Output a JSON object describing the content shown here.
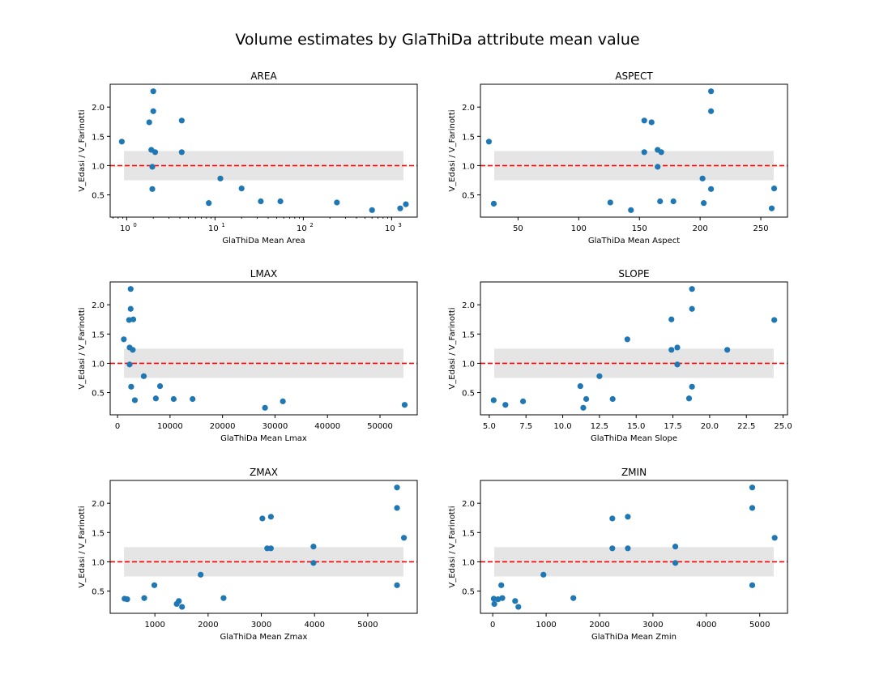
{
  "figure": {
    "title": "Volume estimates by GlaThiDa attribute mean value"
  },
  "chart_data": [
    {
      "type": "scatter",
      "title": "AREA",
      "xlabel": "GlaThiDa Mean Area",
      "ylabel": "V_Edasi / V_Farinotti",
      "xscale": "log",
      "xlim": [
        0.65,
        1950
      ],
      "ylim": [
        0.12,
        2.39
      ],
      "xticks": [
        1,
        10,
        100,
        1000
      ],
      "xtick_labels": [
        {
          "base": "10",
          "exp": "0"
        },
        {
          "base": "10",
          "exp": "1"
        },
        {
          "base": "10",
          "exp": "2"
        },
        {
          "base": "10",
          "exp": "3"
        }
      ],
      "yticks": [
        0.5,
        1.0,
        1.5,
        2.0
      ],
      "ytick_labels": [
        "0.5",
        "1.0",
        "1.5",
        "2.0"
      ],
      "band": [
        0.75,
        1.25
      ],
      "refline": 1.0,
      "points": [
        {
          "x": 0.88,
          "y": 1.41
        },
        {
          "x": 1.8,
          "y": 1.74
        },
        {
          "x": 1.9,
          "y": 1.27
        },
        {
          "x": 2.0,
          "y": 2.27
        },
        {
          "x": 2.0,
          "y": 1.93
        },
        {
          "x": 2.1,
          "y": 1.23
        },
        {
          "x": 1.95,
          "y": 0.98
        },
        {
          "x": 1.95,
          "y": 0.6
        },
        {
          "x": 4.2,
          "y": 1.77
        },
        {
          "x": 4.2,
          "y": 1.23
        },
        {
          "x": 8.5,
          "y": 0.36
        },
        {
          "x": 11.5,
          "y": 0.78
        },
        {
          "x": 20,
          "y": 0.61
        },
        {
          "x": 33,
          "y": 0.39
        },
        {
          "x": 55,
          "y": 0.39
        },
        {
          "x": 240,
          "y": 0.37
        },
        {
          "x": 600,
          "y": 0.24
        },
        {
          "x": 1250,
          "y": 0.27
        },
        {
          "x": 1450,
          "y": 0.34
        }
      ]
    },
    {
      "type": "scatter",
      "title": "ASPECT",
      "xlabel": "GlaThiDa Mean Aspect",
      "ylabel": "V_Edasi / V_Farinotti",
      "xscale": "linear",
      "xlim": [
        19,
        272
      ],
      "ylim": [
        0.12,
        2.39
      ],
      "xticks": [
        50,
        100,
        150,
        200,
        250
      ],
      "xtick_labels": [
        "50",
        "100",
        "150",
        "200",
        "250"
      ],
      "yticks": [
        0.5,
        1.0,
        1.5,
        2.0
      ],
      "ytick_labels": [
        "0.5",
        "1.0",
        "1.5",
        "2.0"
      ],
      "band": [
        0.75,
        1.25
      ],
      "refline": 1.0,
      "points": [
        {
          "x": 26,
          "y": 1.41
        },
        {
          "x": 30,
          "y": 0.35
        },
        {
          "x": 126,
          "y": 0.37
        },
        {
          "x": 143,
          "y": 0.24
        },
        {
          "x": 154,
          "y": 1.77
        },
        {
          "x": 154,
          "y": 1.23
        },
        {
          "x": 160,
          "y": 1.74
        },
        {
          "x": 165,
          "y": 1.27
        },
        {
          "x": 165,
          "y": 0.98
        },
        {
          "x": 167,
          "y": 0.39
        },
        {
          "x": 168,
          "y": 1.23
        },
        {
          "x": 178,
          "y": 0.39
        },
        {
          "x": 202,
          "y": 0.78
        },
        {
          "x": 203,
          "y": 0.36
        },
        {
          "x": 209,
          "y": 2.27
        },
        {
          "x": 209,
          "y": 1.93
        },
        {
          "x": 209,
          "y": 0.6
        },
        {
          "x": 259,
          "y": 0.27
        },
        {
          "x": 261,
          "y": 0.61
        }
      ]
    },
    {
      "type": "scatter",
      "title": "LMAX",
      "xlabel": "GlaThiDa Mean Lmax",
      "ylabel": "V_Edasi / V_Farinotti",
      "xscale": "linear",
      "xlim": [
        -1400,
        57100
      ],
      "ylim": [
        0.12,
        2.39
      ],
      "xticks": [
        0,
        10000,
        20000,
        30000,
        40000,
        50000
      ],
      "xtick_labels": [
        "0",
        "10000",
        "20000",
        "30000",
        "40000",
        "50000"
      ],
      "yticks": [
        0.5,
        1.0,
        1.5,
        2.0
      ],
      "ytick_labels": [
        "0.5",
        "1.0",
        "1.5",
        "2.0"
      ],
      "band": [
        0.75,
        1.25
      ],
      "refline": 1.0,
      "points": [
        {
          "x": 1200,
          "y": 1.41
        },
        {
          "x": 2200,
          "y": 1.74
        },
        {
          "x": 2300,
          "y": 1.27
        },
        {
          "x": 2500,
          "y": 2.27
        },
        {
          "x": 2500,
          "y": 1.93
        },
        {
          "x": 2900,
          "y": 1.23
        },
        {
          "x": 2300,
          "y": 0.98
        },
        {
          "x": 2600,
          "y": 0.6
        },
        {
          "x": 3000,
          "y": 1.75
        },
        {
          "x": 3300,
          "y": 0.37
        },
        {
          "x": 5000,
          "y": 0.78
        },
        {
          "x": 7300,
          "y": 0.4
        },
        {
          "x": 8100,
          "y": 0.61
        },
        {
          "x": 10700,
          "y": 0.39
        },
        {
          "x": 14300,
          "y": 0.39
        },
        {
          "x": 28100,
          "y": 0.24
        },
        {
          "x": 31500,
          "y": 0.35
        },
        {
          "x": 54700,
          "y": 0.29
        }
      ]
    },
    {
      "type": "scatter",
      "title": "SLOPE",
      "xlabel": "GlaThiDa Mean Slope",
      "ylabel": "V_Edasi / V_Farinotti",
      "xscale": "linear",
      "xlim": [
        4.4,
        25.3
      ],
      "ylim": [
        0.12,
        2.39
      ],
      "xticks": [
        5.0,
        7.5,
        10.0,
        12.5,
        15.0,
        17.5,
        20.0,
        22.5,
        25.0
      ],
      "xtick_labels": [
        "5.0",
        "7.5",
        "10.0",
        "12.5",
        "15.0",
        "17.5",
        "20.0",
        "22.5",
        "25.0"
      ],
      "yticks": [
        0.5,
        1.0,
        1.5,
        2.0
      ],
      "ytick_labels": [
        "0.5",
        "1.0",
        "1.5",
        "2.0"
      ],
      "band": [
        0.75,
        1.25
      ],
      "refline": 1.0,
      "points": [
        {
          "x": 5.3,
          "y": 0.37
        },
        {
          "x": 6.1,
          "y": 0.29
        },
        {
          "x": 7.3,
          "y": 0.35
        },
        {
          "x": 11.2,
          "y": 0.61
        },
        {
          "x": 11.4,
          "y": 0.24
        },
        {
          "x": 11.6,
          "y": 0.39
        },
        {
          "x": 12.5,
          "y": 0.78
        },
        {
          "x": 13.4,
          "y": 0.39
        },
        {
          "x": 14.4,
          "y": 1.41
        },
        {
          "x": 17.4,
          "y": 1.75
        },
        {
          "x": 17.4,
          "y": 1.23
        },
        {
          "x": 17.8,
          "y": 1.27
        },
        {
          "x": 17.8,
          "y": 0.98
        },
        {
          "x": 18.6,
          "y": 0.4
        },
        {
          "x": 18.8,
          "y": 2.27
        },
        {
          "x": 18.8,
          "y": 1.93
        },
        {
          "x": 18.8,
          "y": 0.6
        },
        {
          "x": 21.2,
          "y": 1.23
        },
        {
          "x": 24.4,
          "y": 1.74
        }
      ]
    },
    {
      "type": "scatter",
      "title": "ZMAX",
      "xlabel": "GlaThiDa Mean Zmax",
      "ylabel": "V_Edasi / V_Farinotti",
      "xscale": "linear",
      "xlim": [
        160,
        5930
      ],
      "ylim": [
        0.12,
        2.39
      ],
      "xticks": [
        1000,
        2000,
        3000,
        4000,
        5000
      ],
      "xtick_labels": [
        "1000",
        "2000",
        "3000",
        "4000",
        "5000"
      ],
      "yticks": [
        0.5,
        1.0,
        1.5,
        2.0
      ],
      "ytick_labels": [
        "0.5",
        "1.0",
        "1.5",
        "2.0"
      ],
      "band": [
        0.75,
        1.25
      ],
      "refline": 1.0,
      "points": [
        {
          "x": 430,
          "y": 0.37
        },
        {
          "x": 480,
          "y": 0.36
        },
        {
          "x": 800,
          "y": 0.38
        },
        {
          "x": 990,
          "y": 0.6
        },
        {
          "x": 1410,
          "y": 0.28
        },
        {
          "x": 1450,
          "y": 0.33
        },
        {
          "x": 1510,
          "y": 0.23
        },
        {
          "x": 1860,
          "y": 0.78
        },
        {
          "x": 2290,
          "y": 0.38
        },
        {
          "x": 3020,
          "y": 1.74
        },
        {
          "x": 3110,
          "y": 1.23
        },
        {
          "x": 3180,
          "y": 1.77
        },
        {
          "x": 3180,
          "y": 1.23
        },
        {
          "x": 3980,
          "y": 1.26
        },
        {
          "x": 3980,
          "y": 0.98
        },
        {
          "x": 5550,
          "y": 2.27
        },
        {
          "x": 5550,
          "y": 1.92
        },
        {
          "x": 5550,
          "y": 0.6
        },
        {
          "x": 5680,
          "y": 1.41
        }
      ]
    },
    {
      "type": "scatter",
      "title": "ZMIN",
      "xlabel": "GlaThiDa Mean Zmin",
      "ylabel": "V_Edasi / V_Farinotti",
      "xscale": "linear",
      "xlim": [
        -230,
        5520
      ],
      "ylim": [
        0.12,
        2.39
      ],
      "xticks": [
        0,
        1000,
        2000,
        3000,
        4000,
        5000
      ],
      "xtick_labels": [
        "0",
        "1000",
        "2000",
        "3000",
        "4000",
        "5000"
      ],
      "yticks": [
        0.5,
        1.0,
        1.5,
        2.0
      ],
      "ytick_labels": [
        "0.5",
        "1.0",
        "1.5",
        "2.0"
      ],
      "band": [
        0.75,
        1.25
      ],
      "refline": 1.0,
      "points": [
        {
          "x": 20,
          "y": 0.37
        },
        {
          "x": 30,
          "y": 0.28
        },
        {
          "x": 100,
          "y": 0.36
        },
        {
          "x": 160,
          "y": 0.6
        },
        {
          "x": 180,
          "y": 0.38
        },
        {
          "x": 420,
          "y": 0.33
        },
        {
          "x": 480,
          "y": 0.23
        },
        {
          "x": 950,
          "y": 0.78
        },
        {
          "x": 1510,
          "y": 0.38
        },
        {
          "x": 2240,
          "y": 1.74
        },
        {
          "x": 2240,
          "y": 1.23
        },
        {
          "x": 2530,
          "y": 1.77
        },
        {
          "x": 2530,
          "y": 1.23
        },
        {
          "x": 3420,
          "y": 1.26
        },
        {
          "x": 3420,
          "y": 0.98
        },
        {
          "x": 4860,
          "y": 2.27
        },
        {
          "x": 4860,
          "y": 1.92
        },
        {
          "x": 4860,
          "y": 0.6
        },
        {
          "x": 5280,
          "y": 1.41
        }
      ]
    }
  ],
  "colors": {
    "points": "#1f77b4",
    "refline": "#ff0000",
    "band": "#e5e5e5",
    "axes": "#000000"
  }
}
